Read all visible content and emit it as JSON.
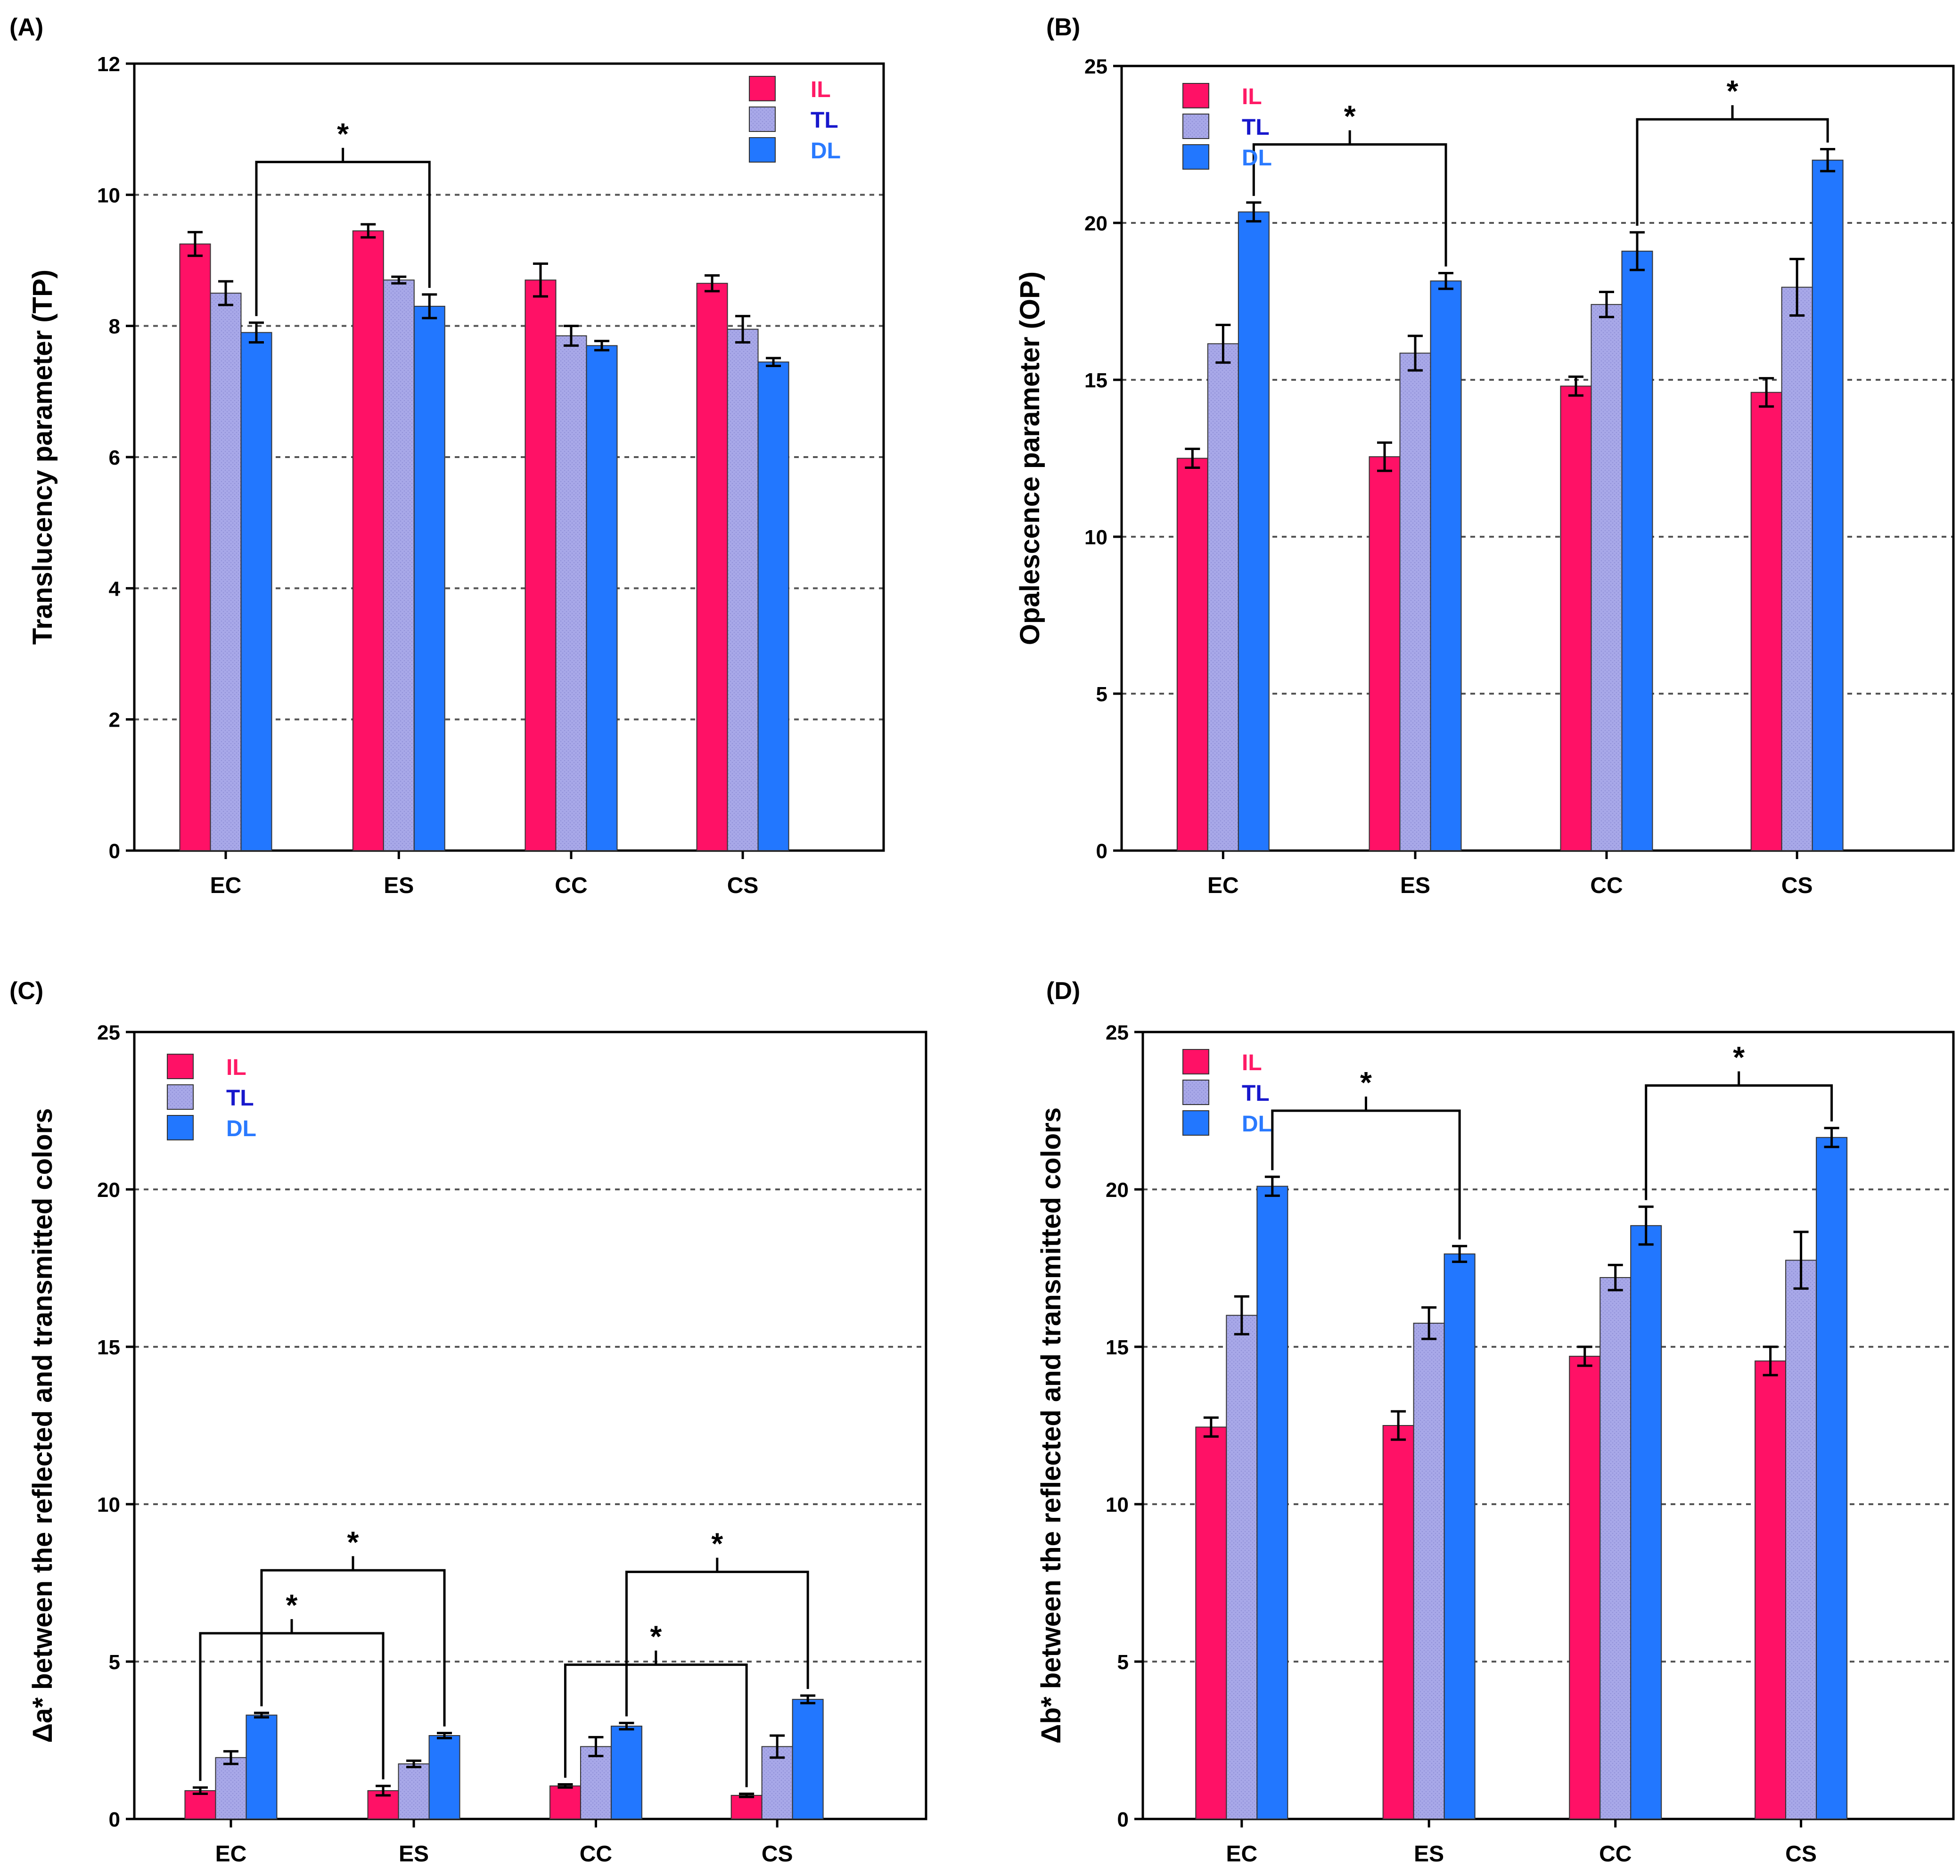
{
  "colors": {
    "IL": "#ff1166",
    "TL": "#a8a8e8",
    "DL": "#2277ff",
    "IL_text": "#ff1a66",
    "TL_text": "#1818cc",
    "DL_text": "#2a7aff"
  },
  "chart_data": [
    {
      "type": "bar",
      "panel_label": "(A)",
      "ylabel": "Translucency parameter (TP)",
      "ylim": [
        0,
        12
      ],
      "yticks": [
        0,
        2,
        4,
        6,
        8,
        10,
        12
      ],
      "grid": [
        2,
        4,
        6,
        8,
        10
      ],
      "categories": [
        "EC",
        "ES",
        "CC",
        "CS"
      ],
      "legend_position": "top-right",
      "series": [
        {
          "name": "IL",
          "values": [
            9.25,
            9.45,
            8.7,
            8.65
          ],
          "errors": [
            0.18,
            0.1,
            0.25,
            0.12
          ]
        },
        {
          "name": "TL",
          "values": [
            8.5,
            8.7,
            7.85,
            7.95
          ],
          "errors": [
            0.18,
            0.05,
            0.15,
            0.2
          ]
        },
        {
          "name": "DL",
          "values": [
            7.9,
            8.3,
            7.7,
            7.45
          ],
          "errors": [
            0.15,
            0.18,
            0.07,
            0.06
          ]
        }
      ],
      "significance": [
        {
          "from": [
            0,
            2
          ],
          "to": [
            1,
            2
          ],
          "height": 10.5,
          "label": "*"
        }
      ]
    },
    {
      "type": "bar",
      "panel_label": "(B)",
      "ylabel": "Opalescence parameter (OP)",
      "ylim": [
        0,
        25
      ],
      "yticks": [
        0,
        5,
        10,
        15,
        20,
        25
      ],
      "grid": [
        5,
        10,
        15,
        20
      ],
      "categories": [
        "EC",
        "ES",
        "CC",
        "CS"
      ],
      "legend_position": "top-left",
      "series": [
        {
          "name": "IL",
          "values": [
            12.5,
            12.55,
            14.8,
            14.6
          ],
          "errors": [
            0.3,
            0.45,
            0.3,
            0.45
          ]
        },
        {
          "name": "TL",
          "values": [
            16.15,
            15.85,
            17.4,
            17.95
          ],
          "errors": [
            0.6,
            0.55,
            0.4,
            0.9
          ]
        },
        {
          "name": "DL",
          "values": [
            20.35,
            18.15,
            19.1,
            22.0
          ],
          "errors": [
            0.3,
            0.25,
            0.6,
            0.35
          ]
        }
      ],
      "significance": [
        {
          "from": [
            0,
            2
          ],
          "to": [
            1,
            2
          ],
          "height": 22.5,
          "label": "*"
        },
        {
          "from": [
            2,
            2
          ],
          "to": [
            3,
            2
          ],
          "height": 23.3,
          "label": "*"
        }
      ]
    },
    {
      "type": "bar",
      "panel_label": "(C)",
      "ylabel": "Δa* between the reflected and transmitted colors",
      "ylim": [
        0,
        25
      ],
      "yticks": [
        0,
        5,
        10,
        15,
        20,
        25
      ],
      "grid": [
        5,
        10,
        15,
        20
      ],
      "categories": [
        "EC",
        "ES",
        "CC",
        "CS"
      ],
      "legend_position": "top-left",
      "series": [
        {
          "name": "IL",
          "values": [
            0.9,
            0.9,
            1.05,
            0.75
          ],
          "errors": [
            0.1,
            0.15,
            0.05,
            0.05
          ]
        },
        {
          "name": "TL",
          "values": [
            1.95,
            1.75,
            2.3,
            2.3
          ],
          "errors": [
            0.2,
            0.1,
            0.3,
            0.35
          ]
        },
        {
          "name": "DL",
          "values": [
            3.3,
            2.65,
            2.95,
            3.8
          ],
          "errors": [
            0.07,
            0.08,
            0.1,
            0.12
          ]
        }
      ],
      "significance": [
        {
          "from": [
            0,
            0
          ],
          "to": [
            1,
            0
          ],
          "height": 5.9,
          "label": "*"
        },
        {
          "from": [
            0,
            2
          ],
          "to": [
            1,
            2
          ],
          "height": 7.9,
          "label": "*"
        },
        {
          "from": [
            2,
            0
          ],
          "to": [
            3,
            0
          ],
          "height": 4.9,
          "label": "*"
        },
        {
          "from": [
            2,
            2
          ],
          "to": [
            3,
            2
          ],
          "height": 7.85,
          "label": "*"
        }
      ]
    },
    {
      "type": "bar",
      "panel_label": "(D)",
      "ylabel": "Δb* between the reflected and transmitted colors",
      "ylim": [
        0,
        25
      ],
      "yticks": [
        0,
        5,
        10,
        15,
        20,
        25
      ],
      "grid": [
        5,
        10,
        15,
        20
      ],
      "categories": [
        "EC",
        "ES",
        "CC",
        "CS"
      ],
      "legend_position": "top-left",
      "series": [
        {
          "name": "IL",
          "values": [
            12.45,
            12.5,
            14.7,
            14.55
          ],
          "errors": [
            0.3,
            0.45,
            0.3,
            0.45
          ]
        },
        {
          "name": "TL",
          "values": [
            16.0,
            15.75,
            17.2,
            17.75
          ],
          "errors": [
            0.6,
            0.5,
            0.4,
            0.9
          ]
        },
        {
          "name": "DL",
          "values": [
            20.1,
            17.95,
            18.85,
            21.65
          ],
          "errors": [
            0.3,
            0.25,
            0.6,
            0.3
          ]
        }
      ],
      "significance": [
        {
          "from": [
            0,
            2
          ],
          "to": [
            1,
            2
          ],
          "height": 22.5,
          "label": "*"
        },
        {
          "from": [
            2,
            2
          ],
          "to": [
            3,
            2
          ],
          "height": 23.3,
          "label": "*"
        }
      ]
    }
  ]
}
